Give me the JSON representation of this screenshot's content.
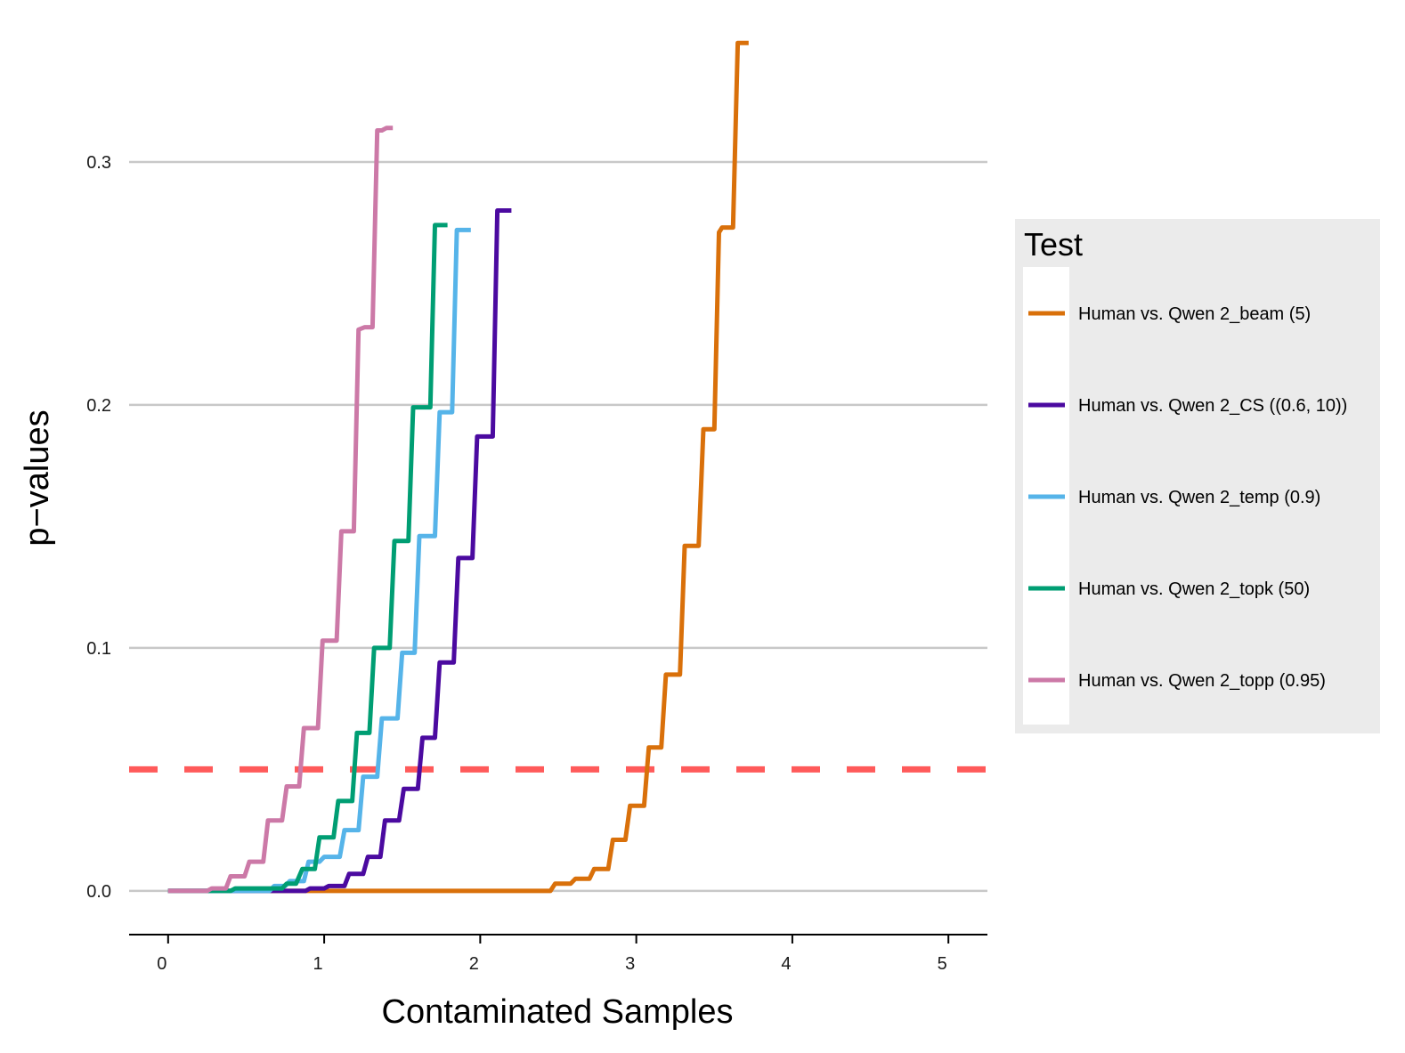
{
  "chart_data": {
    "type": "line",
    "title": "",
    "xlabel": "Contaminated Samples",
    "ylabel": "p−values",
    "xlim": [
      -0.25,
      5.25
    ],
    "ylim": [
      -0.018,
      0.352
    ],
    "xticks": [
      0,
      1,
      2,
      3,
      4,
      5
    ],
    "xtick_labels": [
      "0",
      "1",
      "2",
      "3",
      "4",
      "5"
    ],
    "yticks": [
      0.0,
      0.1,
      0.2,
      0.3
    ],
    "ytick_labels": [
      "0.0",
      "0.1",
      "0.2",
      "0.3"
    ],
    "grid": "horizontal",
    "reference_line": {
      "y": 0.05,
      "color": "#ff5a5a",
      "style": "dashed"
    },
    "legend": {
      "title": "Test",
      "position": "right"
    },
    "series": [
      {
        "name": "Human vs. Qwen 2_beam (5)",
        "color": "#d9700a",
        "points": [
          [
            0.0,
            0.0
          ],
          [
            2.45,
            0.0
          ],
          [
            2.48,
            0.003
          ],
          [
            2.58,
            0.003
          ],
          [
            2.61,
            0.005
          ],
          [
            2.7,
            0.005
          ],
          [
            2.73,
            0.009
          ],
          [
            2.82,
            0.009
          ],
          [
            2.85,
            0.021
          ],
          [
            2.93,
            0.021
          ],
          [
            2.96,
            0.035
          ],
          [
            3.05,
            0.035
          ],
          [
            3.08,
            0.059
          ],
          [
            3.16,
            0.059
          ],
          [
            3.19,
            0.089
          ],
          [
            3.28,
            0.089
          ],
          [
            3.31,
            0.142
          ],
          [
            3.4,
            0.142
          ],
          [
            3.43,
            0.19
          ],
          [
            3.5,
            0.19
          ],
          [
            3.53,
            0.271
          ],
          [
            3.55,
            0.273
          ],
          [
            3.62,
            0.273
          ],
          [
            3.65,
            0.349
          ],
          [
            3.72,
            0.349
          ]
        ]
      },
      {
        "name": "Human vs. Qwen 2_CS ((0.6, 10))",
        "color": "#4b0aa0",
        "points": [
          [
            0.0,
            0.0
          ],
          [
            0.88,
            0.0
          ],
          [
            0.91,
            0.001
          ],
          [
            1.0,
            0.001
          ],
          [
            1.03,
            0.002
          ],
          [
            1.13,
            0.002
          ],
          [
            1.16,
            0.007
          ],
          [
            1.25,
            0.007
          ],
          [
            1.28,
            0.014
          ],
          [
            1.36,
            0.014
          ],
          [
            1.39,
            0.029
          ],
          [
            1.48,
            0.029
          ],
          [
            1.51,
            0.042
          ],
          [
            1.6,
            0.042
          ],
          [
            1.63,
            0.063
          ],
          [
            1.71,
            0.063
          ],
          [
            1.74,
            0.094
          ],
          [
            1.83,
            0.094
          ],
          [
            1.86,
            0.137
          ],
          [
            1.95,
            0.137
          ],
          [
            1.98,
            0.187
          ],
          [
            2.08,
            0.187
          ],
          [
            2.11,
            0.28
          ],
          [
            2.2,
            0.28
          ]
        ]
      },
      {
        "name": "Human vs. Qwen 2_temp (0.9)",
        "color": "#56b4e9",
        "points": [
          [
            0.0,
            0.0
          ],
          [
            0.65,
            0.0
          ],
          [
            0.68,
            0.002
          ],
          [
            0.75,
            0.002
          ],
          [
            0.78,
            0.004
          ],
          [
            0.87,
            0.004
          ],
          [
            0.9,
            0.012
          ],
          [
            0.97,
            0.012
          ],
          [
            1.0,
            0.014
          ],
          [
            1.1,
            0.014
          ],
          [
            1.13,
            0.025
          ],
          [
            1.22,
            0.025
          ],
          [
            1.25,
            0.047
          ],
          [
            1.34,
            0.047
          ],
          [
            1.37,
            0.071
          ],
          [
            1.47,
            0.071
          ],
          [
            1.5,
            0.098
          ],
          [
            1.58,
            0.098
          ],
          [
            1.61,
            0.146
          ],
          [
            1.71,
            0.146
          ],
          [
            1.74,
            0.197
          ],
          [
            1.82,
            0.197
          ],
          [
            1.85,
            0.272
          ],
          [
            1.94,
            0.272
          ]
        ]
      },
      {
        "name": "Human vs. Qwen 2_topk (50)",
        "color": "#009e73",
        "points": [
          [
            0.0,
            0.0
          ],
          [
            0.4,
            0.0
          ],
          [
            0.43,
            0.001
          ],
          [
            0.73,
            0.001
          ],
          [
            0.76,
            0.003
          ],
          [
            0.82,
            0.003
          ],
          [
            0.86,
            0.009
          ],
          [
            0.94,
            0.009
          ],
          [
            0.97,
            0.022
          ],
          [
            1.06,
            0.022
          ],
          [
            1.09,
            0.037
          ],
          [
            1.18,
            0.037
          ],
          [
            1.21,
            0.065
          ],
          [
            1.29,
            0.065
          ],
          [
            1.32,
            0.1
          ],
          [
            1.42,
            0.1
          ],
          [
            1.45,
            0.144
          ],
          [
            1.54,
            0.144
          ],
          [
            1.57,
            0.199
          ],
          [
            1.68,
            0.199
          ],
          [
            1.71,
            0.274
          ],
          [
            1.79,
            0.274
          ]
        ]
      },
      {
        "name": "Human vs. Qwen 2_topp (0.95)",
        "color": "#cc79a7",
        "points": [
          [
            0.0,
            0.0
          ],
          [
            0.25,
            0.0
          ],
          [
            0.28,
            0.001
          ],
          [
            0.37,
            0.001
          ],
          [
            0.4,
            0.006
          ],
          [
            0.49,
            0.006
          ],
          [
            0.52,
            0.012
          ],
          [
            0.61,
            0.012
          ],
          [
            0.64,
            0.029
          ],
          [
            0.73,
            0.029
          ],
          [
            0.76,
            0.043
          ],
          [
            0.84,
            0.043
          ],
          [
            0.87,
            0.067
          ],
          [
            0.96,
            0.067
          ],
          [
            0.99,
            0.103
          ],
          [
            1.08,
            0.103
          ],
          [
            1.11,
            0.148
          ],
          [
            1.19,
            0.148
          ],
          [
            1.22,
            0.231
          ],
          [
            1.26,
            0.232
          ],
          [
            1.31,
            0.232
          ],
          [
            1.34,
            0.313
          ],
          [
            1.37,
            0.313
          ],
          [
            1.4,
            0.314
          ],
          [
            1.44,
            0.314
          ]
        ]
      }
    ]
  }
}
